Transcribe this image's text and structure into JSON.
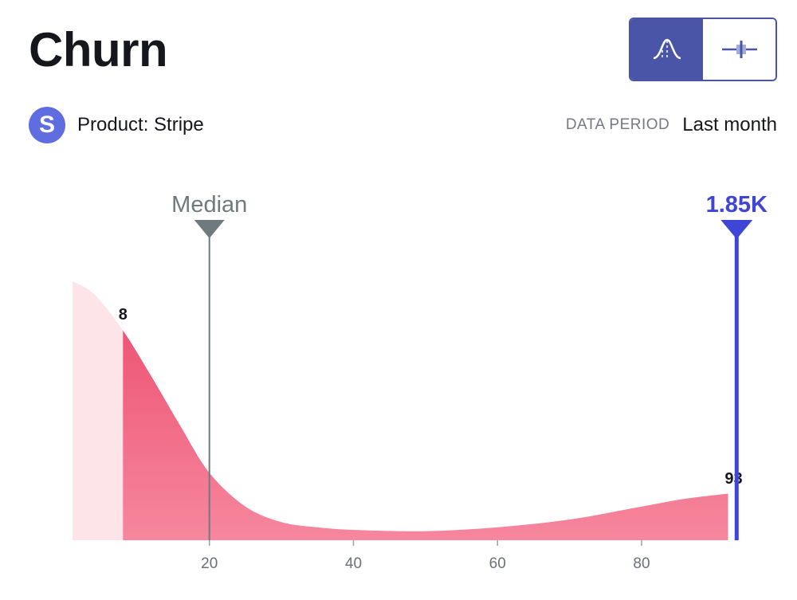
{
  "header": {
    "title": "Churn"
  },
  "view_toggle": {
    "options": [
      {
        "icon": "distribution-curve-icon",
        "active": true
      },
      {
        "icon": "box-plot-icon",
        "active": false
      }
    ]
  },
  "product": {
    "avatar_letter": "S",
    "label": "Product: Stripe"
  },
  "period": {
    "label": "DATA PERIOD",
    "value": "Last month"
  },
  "colors": {
    "accent": "#4a55a7",
    "marker": "#3f46d6",
    "median": "#6e7a7e",
    "fill_light": "#fde4e8",
    "fill_top": "#ec4a6c",
    "fill_bottom": "#f6879e",
    "avatar": "#5f6de0"
  },
  "chart_data": {
    "type": "area",
    "title": "",
    "xlabel": "",
    "ylabel": "",
    "x_ticks": [
      20,
      40,
      60,
      80
    ],
    "xlim": [
      1,
      93.5
    ],
    "ylim": [
      0,
      1
    ],
    "percentile_low": 8,
    "percentile_high": 93,
    "median": {
      "label": "Median",
      "value": 20
    },
    "marker": {
      "label": "1.85K",
      "percentile": 93.2
    },
    "density": [
      {
        "x": 1,
        "y": 1.0
      },
      {
        "x": 4,
        "y": 0.95
      },
      {
        "x": 8,
        "y": 0.81
      },
      {
        "x": 12,
        "y": 0.63
      },
      {
        "x": 16,
        "y": 0.44
      },
      {
        "x": 20,
        "y": 0.26
      },
      {
        "x": 25,
        "y": 0.13
      },
      {
        "x": 30,
        "y": 0.07
      },
      {
        "x": 35,
        "y": 0.05
      },
      {
        "x": 40,
        "y": 0.04
      },
      {
        "x": 50,
        "y": 0.035
      },
      {
        "x": 60,
        "y": 0.05
      },
      {
        "x": 70,
        "y": 0.08
      },
      {
        "x": 80,
        "y": 0.13
      },
      {
        "x": 86,
        "y": 0.16
      },
      {
        "x": 92,
        "y": 0.18
      }
    ]
  }
}
